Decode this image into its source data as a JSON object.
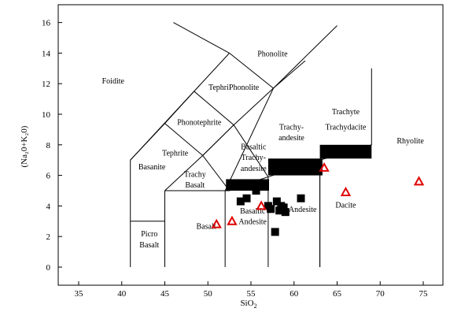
{
  "chart_data": {
    "type": "scatter",
    "title": "",
    "xlabel": "SiO",
    "xlabel_sub": "2",
    "ylabel": "(Na₂0+K₂0)",
    "xlim": [
      32,
      77
    ],
    "ylim": [
      -1.5,
      17
    ],
    "x_ticks": [
      {
        "v": 35,
        "label": "35"
      },
      {
        "v": 40,
        "label": "40"
      },
      {
        "v": 45,
        "label": "45"
      },
      {
        "v": 50,
        "label": "50"
      },
      {
        "v": 55,
        "label": "55"
      },
      {
        "v": 60,
        "label": "60"
      },
      {
        "v": 65,
        "label": "65"
      },
      {
        "v": 70,
        "label": "70"
      },
      {
        "v": 75,
        "label": "75"
      }
    ],
    "y_ticks": [
      {
        "v": 0,
        "label": "0"
      },
      {
        "v": 2,
        "label": "2"
      },
      {
        "v": 4,
        "label": "4"
      },
      {
        "v": 6,
        "label": "6"
      },
      {
        "v": 8,
        "label": "8"
      },
      {
        "v": 10,
        "label": "10"
      },
      {
        "v": 12,
        "label": "12"
      },
      {
        "v": 14,
        "label": "14"
      },
      {
        "v": 16,
        "label": "16"
      }
    ],
    "grid": false,
    "field_boundaries": [
      [
        [
          41,
          0
        ],
        [
          41,
          7
        ],
        [
          52.5,
          14
        ],
        [
          48.4,
          11.5
        ],
        [
          53,
          9.3
        ],
        [
          57,
          5.9
        ],
        [
          63,
          7
        ],
        [
          63,
          0
        ]
      ],
      [
        [
          41,
          7
        ],
        [
          45,
          9.4
        ],
        [
          48.4,
          11.5
        ]
      ],
      [
        [
          45,
          9.4
        ],
        [
          49.4,
          7.3
        ],
        [
          53,
          9.3
        ]
      ],
      [
        [
          45,
          0
        ],
        [
          45,
          5
        ],
        [
          49.4,
          7.3
        ],
        [
          52.5,
          5
        ],
        [
          52,
          5
        ],
        [
          57.6,
          11.7
        ],
        [
          65,
          15.8
        ]
      ],
      [
        [
          45,
          5
        ],
        [
          52,
          5
        ],
        [
          52,
          0
        ]
      ],
      [
        [
          52,
          5
        ],
        [
          57,
          5.9
        ],
        [
          57,
          0
        ]
      ],
      [
        [
          63,
          0
        ],
        [
          63,
          7
        ],
        [
          69,
          8
        ],
        [
          69,
          13
        ]
      ],
      [
        [
          57.6,
          11.7
        ],
        [
          61.3,
          13.5
        ]
      ],
      [
        [
          53,
          9.3
        ],
        [
          57.6,
          11.7
        ]
      ],
      [
        [
          63,
          7
        ],
        [
          69,
          8
        ]
      ],
      [
        [
          41,
          3
        ],
        [
          45,
          3
        ]
      ],
      [
        [
          49.4,
          7.3
        ],
        [
          53,
          9.3
        ]
      ],
      [
        [
          52.5,
          14
        ],
        [
          57.6,
          11.7
        ]
      ],
      [
        [
          46,
          16
        ],
        [
          52.5,
          14
        ]
      ]
    ],
    "field_labels": [
      {
        "text": "Foidite",
        "x": 39,
        "y": 12
      },
      {
        "text": "Phonolite",
        "x": 57.5,
        "y": 13.8
      },
      {
        "text": "TephriPhonolite",
        "x": 53,
        "y": 11.6
      },
      {
        "text": "Phonotephrite",
        "x": 49,
        "y": 9.3
      },
      {
        "text": "Tephrite",
        "x": 46.2,
        "y": 7.3
      },
      {
        "text": "Basanite",
        "x": 43.5,
        "y": 6.4
      },
      {
        "text": "Basaltic",
        "x": 55.3,
        "y": 7.7
      },
      {
        "text": "Trachy-",
        "x": 55.3,
        "y": 7.0
      },
      {
        "text": "andesite",
        "x": 55.3,
        "y": 6.3
      },
      {
        "text": "Trachy",
        "x": 48.5,
        "y": 5.9
      },
      {
        "text": "Basalt",
        "x": 48.5,
        "y": 5.2
      },
      {
        "text": "Trachy-",
        "x": 59.7,
        "y": 9.0
      },
      {
        "text": "andesite",
        "x": 59.7,
        "y": 8.3
      },
      {
        "text": "Trachyte",
        "x": 66,
        "y": 10.0
      },
      {
        "text": "Trachydacite",
        "x": 66,
        "y": 9.0
      },
      {
        "text": "Rhyolite",
        "x": 73.5,
        "y": 8.1
      },
      {
        "text": "Basaltic",
        "x": 55.2,
        "y": 3.5
      },
      {
        "text": "Andesite",
        "x": 55.2,
        "y": 2.8
      },
      {
        "text": "Andesite",
        "x": 61,
        "y": 3.6
      },
      {
        "text": "Dacite",
        "x": 66,
        "y": 3.9
      },
      {
        "text": "Basalt",
        "x": 49.8,
        "y": 2.5
      },
      {
        "text": "Picro",
        "x": 43.2,
        "y": 2.0
      },
      {
        "text": "Basalt",
        "x": 43.2,
        "y": 1.3
      }
    ],
    "filled_bars": [
      {
        "x0": 52.1,
        "x1": 57.1,
        "y0": 5.0,
        "y1": 5.75
      },
      {
        "x0": 57.0,
        "x1": 63.3,
        "y0": 6.0,
        "y1": 7.1
      },
      {
        "x0": 63.0,
        "x1": 69.0,
        "y0": 7.1,
        "y1": 8.0
      }
    ],
    "series": [
      {
        "marker": "square",
        "color": "#000000",
        "points": [
          [
            53.8,
            4.3
          ],
          [
            54.5,
            4.5
          ],
          [
            55.6,
            5.0
          ],
          [
            57.0,
            4.0
          ],
          [
            57.3,
            3.8
          ],
          [
            58.0,
            4.3
          ],
          [
            58.3,
            3.7
          ],
          [
            58.5,
            4.0
          ],
          [
            58.8,
            3.9
          ],
          [
            59.0,
            3.6
          ],
          [
            60.8,
            4.5
          ],
          [
            57.8,
            2.3
          ]
        ]
      },
      {
        "marker": "triangle",
        "color": "#e00000",
        "points": [
          [
            51.0,
            2.8
          ],
          [
            52.8,
            3.0
          ],
          [
            56.2,
            4.0
          ],
          [
            63.5,
            6.5
          ],
          [
            66.0,
            4.9
          ],
          [
            74.5,
            5.6
          ]
        ]
      }
    ]
  }
}
